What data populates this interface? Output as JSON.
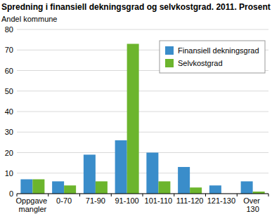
{
  "chart_data": {
    "type": "bar",
    "title": "Spredning i finansiell dekningsgrad og selvkostgrad. 2011. Prosent",
    "y_label": "Andel kommune",
    "categories": [
      "Oppgave mangler",
      "0-70",
      "71-90",
      "91-100",
      "101-110",
      "111-120",
      "121-130",
      "Over 130"
    ],
    "series": [
      {
        "name": "Finansiell dekningsgrad",
        "color": "#3a8dca",
        "values": [
          7,
          6,
          19,
          26,
          20,
          13,
          4,
          6
        ]
      },
      {
        "name": "Selvkostgrad",
        "color": "#6cb52d",
        "values": [
          7,
          4,
          6,
          73,
          6,
          3,
          0,
          1
        ]
      }
    ],
    "ylim": [
      0,
      80
    ],
    "yticks": [
      0,
      10,
      20,
      30,
      40,
      50,
      60,
      70,
      80
    ],
    "grid": true,
    "legend": "upper right"
  }
}
